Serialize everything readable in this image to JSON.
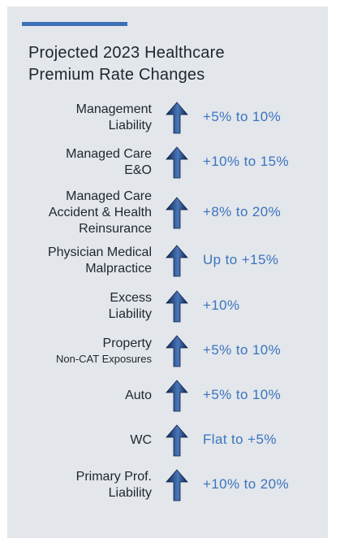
{
  "chart_data": {
    "type": "table",
    "title": "Projected 2023 Healthcare Premium Rate Changes",
    "rows": [
      {
        "label_lines": [
          "Management",
          "Liability"
        ],
        "value": "+5% to 10%",
        "direction": "up"
      },
      {
        "label_lines": [
          "Managed Care",
          "E&O"
        ],
        "value": "+10% to 15%",
        "direction": "up"
      },
      {
        "label_lines": [
          "Managed Care",
          "Accident & Health",
          "Reinsurance"
        ],
        "value": "+8% to 20%",
        "direction": "up"
      },
      {
        "label_lines": [
          "Physician Medical",
          "Malpractice"
        ],
        "value": "Up to +15%",
        "direction": "up"
      },
      {
        "label_lines": [
          "Excess",
          "Liability"
        ],
        "value": "+10%",
        "direction": "up"
      },
      {
        "label_lines": [
          "Property"
        ],
        "sublabel": "Non-CAT Exposures",
        "value": "+5% to 10%",
        "direction": "up"
      },
      {
        "label_lines": [
          "Auto"
        ],
        "value": "+5% to 10%",
        "direction": "up"
      },
      {
        "label_lines": [
          "WC"
        ],
        "value": "Flat to +5%",
        "direction": "up"
      },
      {
        "label_lines": [
          "Primary Prof.",
          "Liability"
        ],
        "value": "+10% to 20%",
        "direction": "up"
      }
    ]
  },
  "title_lines": [
    "Projected 2023 Healthcare",
    "Premium Rate Changes"
  ],
  "colors": {
    "background": "#e3e6ea",
    "accent": "#3b6fb6",
    "value_text": "#3b74c0",
    "label_text": "#1f2530",
    "arrow_dark": "#0f2450",
    "arrow_light": "#4a77b8"
  },
  "icons": {
    "arrow": "up-arrow-icon"
  }
}
